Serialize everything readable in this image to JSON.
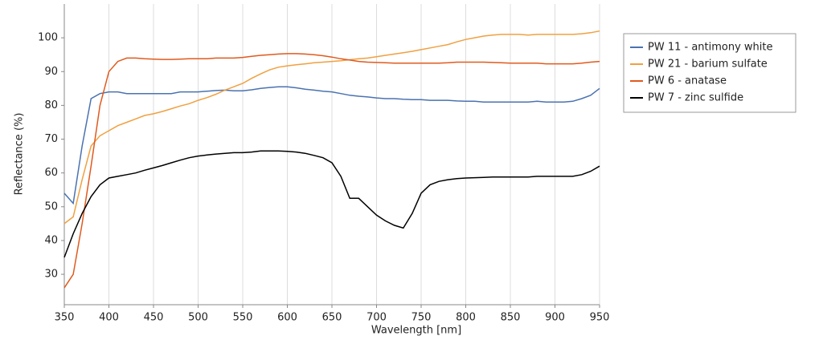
{
  "chart_data": {
    "type": "line",
    "x_label": "Wavelength [nm]",
    "y_label": "Reflectance (%)",
    "x": [
      350,
      360,
      370,
      380,
      390,
      400,
      410,
      420,
      430,
      440,
      450,
      460,
      470,
      480,
      490,
      500,
      510,
      520,
      530,
      540,
      550,
      560,
      570,
      580,
      590,
      600,
      610,
      620,
      630,
      640,
      650,
      660,
      670,
      680,
      690,
      700,
      710,
      720,
      730,
      740,
      750,
      760,
      770,
      780,
      790,
      800,
      810,
      820,
      830,
      840,
      850,
      860,
      870,
      880,
      890,
      900,
      910,
      920,
      930,
      940,
      950
    ],
    "series": [
      {
        "name": "PW 11 - antimony white",
        "color": "#4a72b0",
        "values": [
          54,
          51,
          68,
          82,
          83.5,
          84,
          84,
          83.5,
          83.5,
          83.5,
          83.5,
          83.5,
          83.5,
          84,
          84,
          84,
          84.2,
          84.4,
          84.5,
          84.3,
          84.3,
          84.6,
          85,
          85.3,
          85.5,
          85.5,
          85.2,
          84.8,
          84.5,
          84.2,
          84,
          83.5,
          83,
          82.7,
          82.5,
          82.2,
          82,
          82,
          81.8,
          81.7,
          81.7,
          81.5,
          81.5,
          81.5,
          81.3,
          81.2,
          81.2,
          81,
          81,
          81,
          81,
          81,
          81,
          81.2,
          81,
          81,
          81,
          81.2,
          82,
          83,
          85
        ]
      },
      {
        "name": "PW 21 - barium sulfate",
        "color": "#f0a040",
        "values": [
          45,
          47,
          58,
          68,
          71,
          72.5,
          74,
          75,
          76,
          77,
          77.5,
          78.2,
          79,
          79.8,
          80.5,
          81.5,
          82.3,
          83.3,
          84.5,
          85.5,
          86.5,
          88,
          89.3,
          90.5,
          91.3,
          91.7,
          92,
          92.3,
          92.6,
          92.8,
          93,
          93.2,
          93.5,
          93.8,
          94,
          94.4,
          94.8,
          95.2,
          95.6,
          96,
          96.5,
          97,
          97.5,
          98,
          98.8,
          99.5,
          100,
          100.5,
          100.8,
          101,
          101,
          101,
          100.8,
          101,
          101,
          101,
          101,
          101,
          101.2,
          101.5,
          102
        ]
      },
      {
        "name": "PW 6 - anatase",
        "color": "#e05a1e",
        "values": [
          26,
          30,
          45,
          62,
          80,
          90,
          93,
          94,
          94,
          93.8,
          93.7,
          93.6,
          93.6,
          93.7,
          93.8,
          93.8,
          93.8,
          94,
          94,
          94,
          94.2,
          94.5,
          94.8,
          95,
          95.2,
          95.3,
          95.3,
          95.2,
          95,
          94.7,
          94.3,
          93.8,
          93.4,
          93,
          92.8,
          92.7,
          92.6,
          92.5,
          92.5,
          92.5,
          92.5,
          92.5,
          92.5,
          92.6,
          92.8,
          92.8,
          92.8,
          92.8,
          92.7,
          92.6,
          92.5,
          92.5,
          92.5,
          92.5,
          92.3,
          92.3,
          92.3,
          92.3,
          92.5,
          92.8,
          93
        ]
      },
      {
        "name": "PW 7 - zinc sulfide",
        "color": "#000000",
        "values": [
          35,
          42,
          48,
          53,
          56.5,
          58.5,
          59,
          59.5,
          60,
          60.8,
          61.5,
          62.2,
          63,
          63.8,
          64.5,
          65,
          65.3,
          65.6,
          65.8,
          66,
          66,
          66.2,
          66.5,
          66.5,
          66.5,
          66.4,
          66.2,
          65.8,
          65.2,
          64.5,
          63,
          59,
          52.5,
          52.5,
          50,
          47.5,
          45.8,
          44.5,
          43.7,
          48,
          54,
          56.5,
          57.5,
          58,
          58.3,
          58.5,
          58.6,
          58.7,
          58.8,
          58.8,
          58.8,
          58.8,
          58.8,
          59,
          59,
          59,
          59,
          59,
          59.5,
          60.5,
          62
        ]
      }
    ],
    "xlim": [
      350,
      950
    ],
    "ylim": [
      21,
      110
    ],
    "xticks": [
      350,
      400,
      450,
      500,
      550,
      600,
      650,
      700,
      750,
      800,
      850,
      900,
      950
    ],
    "yticks": [
      30,
      40,
      50,
      60,
      70,
      80,
      90,
      100
    ],
    "x_grid": true,
    "legend": "right"
  }
}
